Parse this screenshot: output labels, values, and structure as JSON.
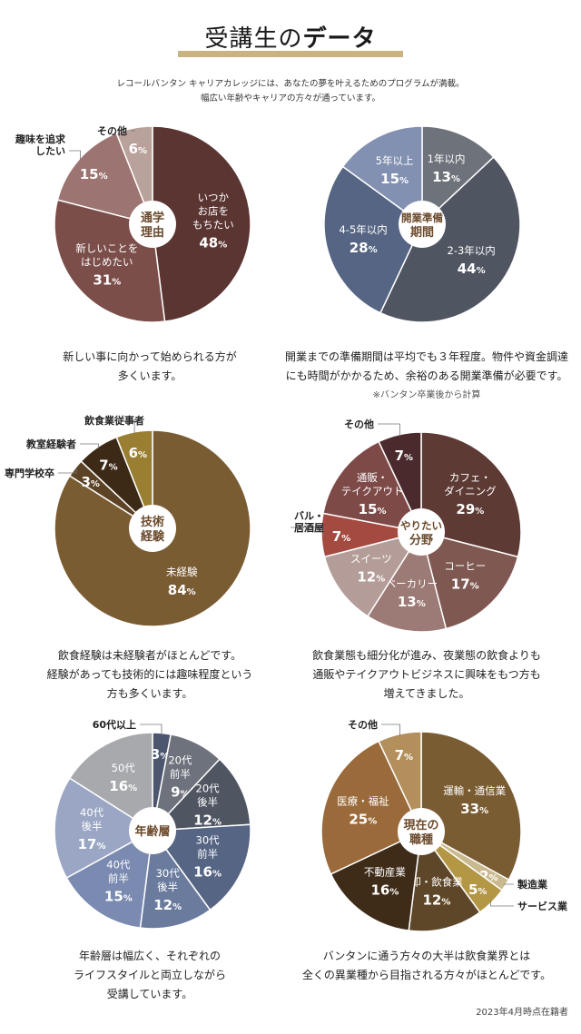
{
  "header": {
    "title_part1": "受講生の",
    "title_part2": "データ",
    "intro_line1": "レコールバンタン キャリアカレッジには、あなたの夢を叶えるためのプログラムが満載。",
    "intro_line2": "幅広い年齢やキャリアの方々が通っています。"
  },
  "footer": {
    "note": "2023年4月時点在籍者"
  },
  "chart_data": [
    {
      "type": "pie",
      "center_label": [
        "通学",
        "理由"
      ],
      "slices": [
        {
          "label": [
            "いつか",
            "お店を",
            "もちたい"
          ],
          "value": 48,
          "color": "#5a3531",
          "text_color": "#ffffff"
        },
        {
          "label": [
            "新しいことを",
            "はじめたい"
          ],
          "value": 31,
          "color": "#7b4e4a",
          "text_color": "#ffffff"
        },
        {
          "label": [
            "趣味を追求",
            "したい"
          ],
          "value": 15,
          "color": "#9c7471",
          "text_color": "#ffffff"
        },
        {
          "label": [
            "その他"
          ],
          "value": 6,
          "color": "#b9a19c",
          "text_color": "#ffffff"
        }
      ],
      "caption": [
        "新しい事に向かって始められる方が",
        "多くいます。"
      ]
    },
    {
      "type": "pie",
      "center_label": [
        "開業準備",
        "期間"
      ],
      "slices": [
        {
          "label": [
            "1年以内"
          ],
          "value": 13,
          "color": "#6e727a",
          "text_color": "#ffffff"
        },
        {
          "label": [
            "2-3年以内"
          ],
          "value": 44,
          "color": "#4f5561",
          "text_color": "#ffffff"
        },
        {
          "label": [
            "4-5年以内"
          ],
          "value": 28,
          "color": "#566583",
          "text_color": "#ffffff"
        },
        {
          "label": [
            "5年以上"
          ],
          "value": 15,
          "color": "#8290b1",
          "text_color": "#ffffff"
        }
      ],
      "caption": [
        "開業までの準備期間は平均でも３年程度。物件や資金調達",
        "にも時間がかかるため、余裕のある開業準備が必要です。"
      ],
      "subnote": "※バンタン卒業後から計算"
    },
    {
      "type": "pie",
      "center_label": [
        "技術",
        "経験"
      ],
      "slices": [
        {
          "label": [
            "未経験"
          ],
          "value": 84,
          "color": "#7a5c33",
          "text_color": "#ffffff"
        },
        {
          "label": [
            "専門学校卒"
          ],
          "value": 3,
          "color": "#5c4325",
          "text_color": "#ffffff"
        },
        {
          "label": [
            "教室経験者"
          ],
          "value": 7,
          "color": "#3c2a17",
          "text_color": "#ffffff"
        },
        {
          "label": [
            "飲食業従事者"
          ],
          "value": 6,
          "color": "#9a7f33",
          "text_color": "#ffffff"
        }
      ],
      "caption": [
        "飲食経験は未経験者がほとんどです。",
        "経験があっても技術的には趣味程度という",
        "方も多くいます。"
      ]
    },
    {
      "type": "pie",
      "center_label": [
        "やりたい",
        "分野"
      ],
      "slices": [
        {
          "label": [
            "カフェ・",
            "ダイニング"
          ],
          "value": 29,
          "color": "#5e3a34",
          "text_color": "#ffffff"
        },
        {
          "label": [
            "コーヒー"
          ],
          "value": 17,
          "color": "#7f5852",
          "text_color": "#ffffff"
        },
        {
          "label": [
            "ベーカリー"
          ],
          "value": 13,
          "color": "#9c7a76",
          "text_color": "#ffffff"
        },
        {
          "label": [
            "スイーツ"
          ],
          "value": 12,
          "color": "#b49d99",
          "text_color": "#ffffff"
        },
        {
          "label": [
            "バル・",
            "居酒屋"
          ],
          "value": 7,
          "color": "#a54a40",
          "text_color": "#ffffff"
        },
        {
          "label": [
            "通販・",
            "テイクアウト"
          ],
          "value": 15,
          "color": "#7d4a48",
          "text_color": "#ffffff"
        },
        {
          "label": [
            "その他"
          ],
          "value": 7,
          "color": "#4a2a2c",
          "text_color": "#ffffff"
        }
      ],
      "caption": [
        "飲食業態も細分化が進み、夜業態の飲食よりも",
        "通販やテイクアウトビジネスに興味をもつ方も",
        "増えてきました。"
      ]
    },
    {
      "type": "pie",
      "center_label": [
        "年齢層"
      ],
      "slices": [
        {
          "label": [
            "60代以上"
          ],
          "value": 3,
          "color": "#4c566f",
          "text_color": "#ffffff"
        },
        {
          "label": [
            "20代",
            "前半"
          ],
          "value": 9,
          "color": "#6d727c",
          "text_color": "#ffffff"
        },
        {
          "label": [
            "20代",
            "後半"
          ],
          "value": 12,
          "color": "#4f5561",
          "text_color": "#ffffff"
        },
        {
          "label": [
            "30代",
            "前半"
          ],
          "value": 16,
          "color": "#566583",
          "text_color": "#ffffff"
        },
        {
          "label": [
            "30代",
            "後半"
          ],
          "value": 12,
          "color": "#6a7b9e",
          "text_color": "#ffffff"
        },
        {
          "label": [
            "40代",
            "前半"
          ],
          "value": 15,
          "color": "#7a8ab0",
          "text_color": "#ffffff"
        },
        {
          "label": [
            "40代",
            "後半"
          ],
          "value": 17,
          "color": "#9aa6c4",
          "text_color": "#ffffff"
        },
        {
          "label": [
            "50代"
          ],
          "value": 16,
          "color": "#a7a9ad",
          "text_color": "#ffffff"
        }
      ],
      "caption": [
        "年齢層は幅広く、それぞれの",
        "ライフスタイルと両立しながら",
        "受講しています。"
      ]
    },
    {
      "type": "pie",
      "center_label": [
        "現在の",
        "職種"
      ],
      "slices": [
        {
          "label": [
            "運輸・通信業"
          ],
          "value": 33,
          "color": "#7a5c33",
          "text_color": "#ffffff"
        },
        {
          "label": [
            "製造業"
          ],
          "value": 2,
          "color": "#c9b98e",
          "text_color": "#ffffff"
        },
        {
          "label": [
            "サービス業"
          ],
          "value": 5,
          "color": "#b39745",
          "text_color": "#ffffff"
        },
        {
          "label": [
            "卸・飲食業"
          ],
          "value": 12,
          "color": "#5e4728",
          "text_color": "#ffffff"
        },
        {
          "label": [
            "不動産業"
          ],
          "value": 16,
          "color": "#3e2c18",
          "text_color": "#ffffff"
        },
        {
          "label": [
            "医療・福祉"
          ],
          "value": 25,
          "color": "#9a6a3a",
          "text_color": "#ffffff"
        },
        {
          "label": [
            "その他"
          ],
          "value": 7,
          "color": "#b38f5c",
          "text_color": "#ffffff"
        }
      ],
      "caption": [
        "バンタンに通う方々の大半は飲食業界とは",
        "全くの異業種から目指される方々がほとんどです。"
      ]
    }
  ]
}
